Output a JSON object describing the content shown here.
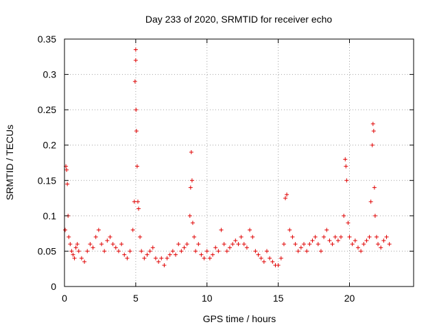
{
  "chart_data": {
    "type": "scatter",
    "title": "Day 233 of 2020, SRMTID for receiver echo",
    "xlabel": "GPS time / hours",
    "ylabel": "SRMTID / TECUs",
    "xlim": [
      0,
      24.5
    ],
    "ylim": [
      0,
      0.35
    ],
    "xticks": [
      0,
      5,
      10,
      15,
      20
    ],
    "xtick_labels": [
      "0",
      "5",
      "10",
      "15",
      "20"
    ],
    "yticks": [
      0,
      0.05,
      0.1,
      0.15,
      0.2,
      0.25,
      0.3,
      0.35
    ],
    "ytick_labels": [
      "0",
      "0.05",
      "0.1",
      "0.15",
      "0.2",
      "0.25",
      "0.3",
      "0.35"
    ],
    "grid": true,
    "marker": "plus",
    "color": "#e00000",
    "series": [
      {
        "name": "SRMTID",
        "x": [
          0.05,
          0.1,
          0.15,
          0.2,
          0.25,
          0.3,
          0.4,
          0.5,
          0.6,
          0.7,
          0.8,
          0.9,
          1.0,
          1.2,
          1.4,
          1.6,
          1.8,
          2.0,
          2.2,
          2.4,
          2.6,
          2.8,
          3.0,
          3.2,
          3.4,
          3.6,
          3.8,
          4.0,
          4.2,
          4.4,
          4.6,
          4.8,
          4.9,
          4.95,
          5.0,
          5.0,
          5.02,
          5.05,
          5.1,
          5.15,
          5.2,
          5.3,
          5.4,
          5.6,
          5.8,
          6.0,
          6.2,
          6.4,
          6.6,
          6.8,
          7.0,
          7.2,
          7.4,
          7.6,
          7.8,
          8.0,
          8.2,
          8.4,
          8.6,
          8.8,
          8.85,
          8.9,
          8.95,
          9.0,
          9.1,
          9.2,
          9.4,
          9.6,
          9.8,
          10.0,
          10.2,
          10.4,
          10.6,
          10.8,
          11.0,
          11.2,
          11.4,
          11.6,
          11.8,
          12.0,
          12.2,
          12.4,
          12.6,
          12.8,
          13.0,
          13.2,
          13.4,
          13.6,
          13.8,
          14.0,
          14.2,
          14.4,
          14.6,
          14.8,
          15.0,
          15.2,
          15.4,
          15.5,
          15.6,
          15.8,
          16.0,
          16.2,
          16.4,
          16.6,
          16.8,
          17.0,
          17.2,
          17.4,
          17.6,
          17.8,
          18.0,
          18.2,
          18.4,
          18.6,
          18.8,
          19.0,
          19.2,
          19.4,
          19.6,
          19.7,
          19.75,
          19.8,
          19.9,
          20.0,
          20.2,
          20.4,
          20.6,
          20.8,
          21.0,
          21.2,
          21.4,
          21.5,
          21.6,
          21.65,
          21.7,
          21.75,
          21.8,
          21.9,
          22.0,
          22.2,
          22.4,
          22.6,
          22.8
        ],
        "y": [
          0.08,
          0.17,
          0.165,
          0.145,
          0.1,
          0.07,
          0.06,
          0.05,
          0.045,
          0.04,
          0.055,
          0.06,
          0.05,
          0.04,
          0.035,
          0.05,
          0.06,
          0.055,
          0.07,
          0.08,
          0.06,
          0.05,
          0.065,
          0.07,
          0.06,
          0.055,
          0.05,
          0.06,
          0.045,
          0.04,
          0.05,
          0.08,
          0.12,
          0.29,
          0.335,
          0.32,
          0.25,
          0.22,
          0.17,
          0.12,
          0.11,
          0.07,
          0.05,
          0.04,
          0.045,
          0.05,
          0.055,
          0.04,
          0.035,
          0.04,
          0.03,
          0.04,
          0.045,
          0.05,
          0.045,
          0.06,
          0.05,
          0.055,
          0.06,
          0.1,
          0.14,
          0.19,
          0.15,
          0.09,
          0.07,
          0.05,
          0.06,
          0.045,
          0.04,
          0.05,
          0.04,
          0.045,
          0.055,
          0.05,
          0.08,
          0.06,
          0.05,
          0.055,
          0.06,
          0.065,
          0.06,
          0.07,
          0.06,
          0.055,
          0.08,
          0.07,
          0.05,
          0.045,
          0.04,
          0.035,
          0.05,
          0.04,
          0.035,
          0.03,
          0.03,
          0.04,
          0.06,
          0.125,
          0.13,
          0.08,
          0.07,
          0.06,
          0.05,
          0.055,
          0.06,
          0.05,
          0.06,
          0.065,
          0.07,
          0.06,
          0.05,
          0.07,
          0.08,
          0.065,
          0.06,
          0.07,
          0.065,
          0.07,
          0.1,
          0.18,
          0.17,
          0.15,
          0.09,
          0.07,
          0.06,
          0.065,
          0.055,
          0.05,
          0.06,
          0.065,
          0.07,
          0.12,
          0.2,
          0.23,
          0.22,
          0.14,
          0.1,
          0.07,
          0.06,
          0.055,
          0.065,
          0.07,
          0.06
        ]
      }
    ]
  }
}
